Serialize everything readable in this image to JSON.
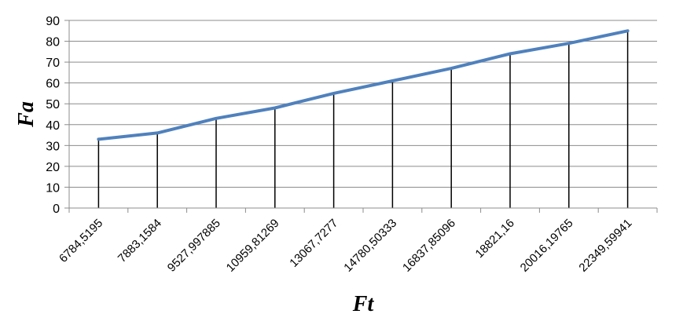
{
  "chart_data": {
    "type": "line",
    "xlabel": "Ft",
    "ylabel": "Fa",
    "ylim": [
      0,
      90
    ],
    "yticks": [
      0,
      10,
      20,
      30,
      40,
      50,
      60,
      70,
      80,
      90
    ],
    "categories": [
      "6784,5195",
      "7883,1584",
      "9527,997885",
      "10959,81269",
      "13067,7277",
      "14780,50333",
      "16837,85096",
      "18821,16",
      "20016,19765",
      "22349,59941"
    ],
    "series": [
      {
        "values": [
          33,
          36,
          43,
          48,
          55,
          61,
          67,
          74,
          79,
          85
        ],
        "color": "#4F81BD"
      }
    ],
    "grid": "horizontal",
    "drop_lines": true,
    "drop_line_color": "#000000"
  }
}
